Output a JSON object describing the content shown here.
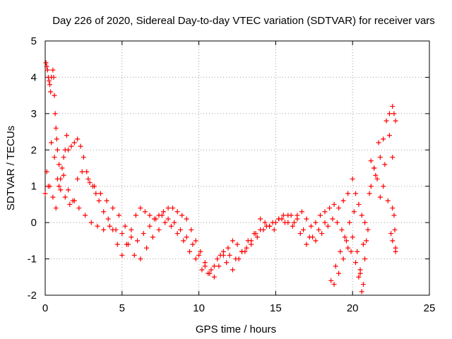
{
  "chart_data": {
    "type": "scatter",
    "title": "Day 226 of 2020, Sidereal Day-to-day VTEC variation (SDTVAR) for receiver vars",
    "xlabel": "GPS time / hours",
    "ylabel": "SDTVAR / TECUs",
    "xlim": [
      0,
      25
    ],
    "ylim": [
      -2,
      5
    ],
    "xticks": [
      "0",
      "5",
      "10",
      "15",
      "20",
      "25"
    ],
    "yticks": [
      "-2",
      "-1",
      "0",
      "1",
      "2",
      "3",
      "4",
      "5"
    ],
    "grid": true,
    "marker": "+",
    "series": [
      {
        "name": "vars",
        "color": "#ff0000",
        "x": [
          0.0,
          0.05,
          0.1,
          0.15,
          0.2,
          0.25,
          0.3,
          0.35,
          0.4,
          0.5,
          0.55,
          0.6,
          0.65,
          0.7,
          0.75,
          0.8,
          0.9,
          1.0,
          1.1,
          1.2,
          1.3,
          1.4,
          1.5,
          1.7,
          1.9,
          2.1,
          2.3,
          2.5,
          2.7,
          2.9,
          3.1,
          3.3,
          3.5,
          3.8,
          4.1,
          4.4,
          4.7,
          5.0,
          5.3,
          5.6,
          5.9,
          6.2,
          6.5,
          6.8,
          7.1,
          7.4,
          7.7,
          8.0,
          8.3,
          8.6,
          8.9,
          9.2,
          9.5,
          9.8,
          10.1,
          10.4,
          10.7,
          11.0,
          11.3,
          11.6,
          11.9,
          12.2,
          12.5,
          12.8,
          13.1,
          13.4,
          13.7,
          14.0,
          14.3,
          14.6,
          14.9,
          15.2,
          15.5,
          15.8,
          16.1,
          16.4,
          16.7,
          17.0,
          17.3,
          17.6,
          17.9,
          18.2,
          18.5,
          18.8,
          19.1,
          19.4,
          19.7,
          20.0,
          20.2,
          20.4,
          20.6,
          20.8,
          21.0,
          21.2,
          21.4,
          21.6,
          21.8,
          22.0,
          22.2,
          22.4,
          22.6,
          22.7,
          22.8,
          0.2,
          0.4,
          0.6,
          0.8,
          1.0,
          1.3,
          1.6,
          1.9,
          2.2,
          2.6,
          3.0,
          3.4,
          3.8,
          4.2,
          4.6,
          5.0,
          5.4,
          5.8,
          6.2,
          6.6,
          7.0,
          7.4,
          7.8,
          8.2,
          8.6,
          9.0,
          9.4,
          9.8,
          10.2,
          10.6,
          11.0,
          11.4,
          11.8,
          12.2,
          12.6,
          13.0,
          13.4,
          13.8,
          14.2,
          14.6,
          15.0,
          15.4,
          15.8,
          16.2,
          16.6,
          17.0,
          17.4,
          17.8,
          18.2,
          18.6,
          18.9,
          19.2,
          19.5,
          19.8,
          20.1,
          20.4,
          20.6,
          20.8,
          21.1,
          21.4,
          21.7,
          22.0,
          22.3,
          22.6,
          22.8,
          0.1,
          0.3,
          0.5,
          0.7,
          0.9,
          1.2,
          1.5,
          1.8,
          2.1,
          2.4,
          2.8,
          3.2,
          3.6,
          4.0,
          4.4,
          4.8,
          5.2,
          5.6,
          6.0,
          6.4,
          6.8,
          7.2,
          7.6,
          8.0,
          8.4,
          8.8,
          9.2,
          9.6,
          10.0,
          10.4,
          10.8,
          11.2,
          11.6,
          12.0,
          12.4,
          12.8,
          13.2,
          13.6,
          14.0,
          14.4,
          14.8,
          15.2,
          15.6,
          16.0,
          16.4,
          16.8,
          17.2,
          17.6,
          18.0,
          18.4,
          18.7,
          19.0,
          19.3,
          19.6,
          19.9,
          20.2,
          20.5,
          20.7,
          20.9,
          21.2,
          21.5,
          21.8,
          22.1,
          22.4,
          22.6,
          22.75,
          18.8,
          19.1,
          19.4,
          19.7,
          20.0,
          20.3,
          20.5,
          20.7,
          22.5,
          22.6,
          22.7,
          22.8
        ],
        "y": [
          0.8,
          4.4,
          4.3,
          4.2,
          4.0,
          3.9,
          3.8,
          3.6,
          4.0,
          4.2,
          4.0,
          3.5,
          3.0,
          2.6,
          2.3,
          2.0,
          1.6,
          1.2,
          1.5,
          1.8,
          2.0,
          2.4,
          2.0,
          2.1,
          2.2,
          2.3,
          2.1,
          1.8,
          1.4,
          1.1,
          1.0,
          0.8,
          0.6,
          0.3,
          0.1,
          -0.2,
          -0.6,
          -0.9,
          -0.6,
          -0.2,
          0.2,
          0.4,
          0.3,
          0.2,
          0.1,
          0.2,
          0.3,
          0.4,
          0.4,
          0.3,
          0.2,
          0.1,
          -0.2,
          -0.5,
          -0.8,
          -1.1,
          -1.4,
          -1.5,
          -1.2,
          -0.9,
          -0.7,
          -0.5,
          -0.6,
          -0.8,
          -0.7,
          -0.5,
          -0.3,
          0.1,
          0.0,
          -0.1,
          -0.2,
          0.1,
          0.2,
          0.0,
          -0.1,
          0.2,
          0.3,
          0.1,
          -0.1,
          0.0,
          0.2,
          0.3,
          0.4,
          0.5,
          0.4,
          0.6,
          0.8,
          1.2,
          0.8,
          0.5,
          0.2,
          0.0,
          -0.2,
          1.7,
          1.5,
          1.2,
          1.8,
          2.3,
          2.8,
          3.0,
          3.2,
          3.0,
          2.8,
          1.0,
          2.2,
          1.8,
          1.2,
          0.9,
          0.7,
          0.5,
          0.6,
          0.4,
          0.2,
          0.0,
          -0.1,
          -0.2,
          -0.1,
          -0.2,
          -0.3,
          -0.6,
          -0.9,
          -1.0,
          -0.7,
          -0.4,
          -0.2,
          0.0,
          -0.1,
          -0.3,
          -0.5,
          -0.8,
          -1.0,
          -1.3,
          -1.4,
          -1.2,
          -0.9,
          -1.1,
          -1.3,
          -1.0,
          -0.8,
          -0.6,
          -0.4,
          -0.2,
          -0.1,
          0.0,
          0.1,
          0.2,
          0.0,
          -0.3,
          -0.6,
          -0.4,
          -0.2,
          0.0,
          -1.6,
          -1.2,
          -0.8,
          -0.4,
          0.0,
          0.3,
          -1.5,
          -1.9,
          -1.0,
          0.8,
          1.5,
          2.2,
          1.0,
          0.6,
          0.4,
          -0.8,
          1.4,
          1.0,
          0.7,
          0.4,
          1.0,
          1.3,
          0.9,
          0.6,
          1.2,
          1.4,
          1.2,
          1.0,
          0.8,
          0.6,
          0.4,
          0.2,
          -0.1,
          -0.4,
          -0.5,
          -0.3,
          -0.1,
          0.1,
          0.2,
          0.1,
          0.0,
          -0.2,
          -0.4,
          -0.6,
          -0.9,
          -1.2,
          -1.3,
          -1.0,
          -0.8,
          -0.9,
          -1.0,
          -0.8,
          -0.5,
          -0.3,
          -0.2,
          -0.1,
          0.0,
          0.1,
          0.0,
          0.2,
          0.1,
          -0.2,
          -0.4,
          -0.5,
          -0.3,
          -0.1,
          0.1,
          0.0,
          -0.2,
          -0.5,
          -0.8,
          -1.1,
          -1.4,
          -1.7,
          -0.5,
          1.0,
          1.3,
          0.7,
          1.6,
          2.4,
          1.8,
          -0.2,
          -1.7,
          -1.4,
          -1.0,
          -0.7,
          -0.4,
          -0.8,
          -1.3,
          -0.6,
          -0.3,
          -0.5,
          0.2,
          -0.7
        ]
      }
    ]
  }
}
